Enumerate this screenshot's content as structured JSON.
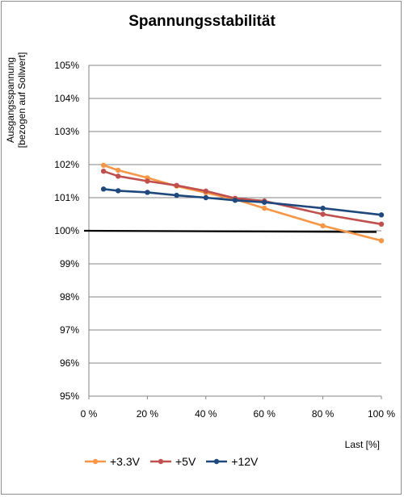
{
  "chart_data": {
    "type": "line",
    "title": "Spannungsstabilität",
    "ylabel": "Ausgangsspannung\n[bezogen auf Sollwert]",
    "xlabel": "Last [%]",
    "xlim": [
      0,
      100
    ],
    "ylim": [
      95,
      105
    ],
    "x_ticks": [
      "0 %",
      "20 %",
      "40 %",
      "60 %",
      "80 %",
      "100 %"
    ],
    "y_ticks": [
      "95%",
      "96%",
      "97%",
      "98%",
      "99%",
      "100%",
      "101%",
      "102%",
      "103%",
      "104%",
      "105%"
    ],
    "grid": "horizontal",
    "legend": "bottom",
    "reference_line": 100,
    "series": [
      {
        "name": "+3.3V",
        "color": "#f79646",
        "x": [
          5,
          10,
          20,
          30,
          40,
          50,
          60,
          80,
          100
        ],
        "y": [
          101.98,
          101.83,
          101.6,
          101.35,
          101.15,
          100.95,
          100.68,
          100.15,
          99.7
        ]
      },
      {
        "name": "+5V",
        "color": "#c0504d",
        "x": [
          5,
          10,
          20,
          30,
          40,
          50,
          60,
          80,
          100
        ],
        "y": [
          101.8,
          101.65,
          101.5,
          101.37,
          101.2,
          100.98,
          100.9,
          100.5,
          100.2
        ]
      },
      {
        "name": "+12V",
        "color": "#1f497d",
        "x": [
          5,
          10,
          20,
          30,
          40,
          50,
          60,
          80,
          100
        ],
        "y": [
          101.26,
          101.21,
          101.16,
          101.07,
          101.0,
          100.92,
          100.86,
          100.68,
          100.48
        ]
      }
    ]
  }
}
